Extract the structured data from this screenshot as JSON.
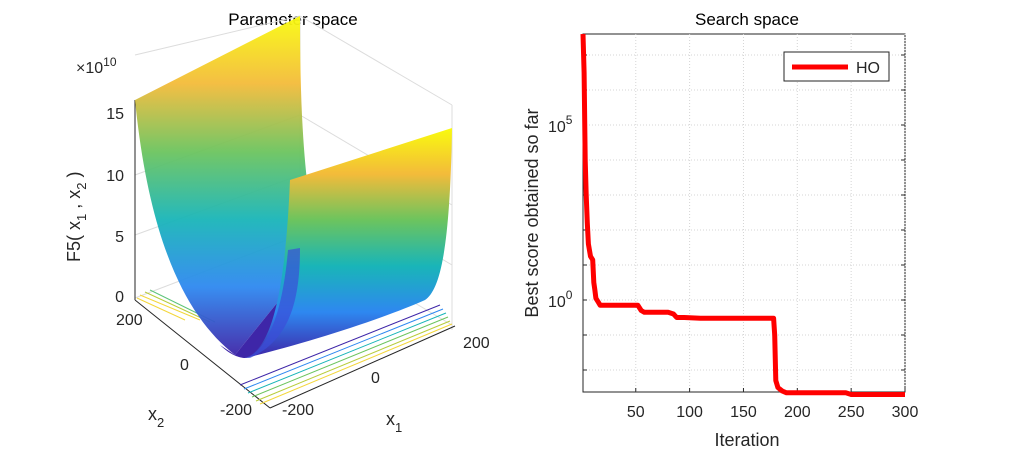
{
  "figure": {
    "left_title": "Parameter space",
    "right_title": "Search space"
  },
  "chart_data": [
    {
      "type": "surface",
      "title": "Parameter space",
      "zlabel": "F5( x",
      "zlabel_sub1": "1",
      "zlabel_mid": " , x",
      "zlabel_sub2": "2",
      "zlabel_end": " )",
      "zmultiplier": "×10",
      "zmultiplier_exp": "10",
      "xlabel": "x",
      "xlabel_sub": "1",
      "ylabel": "x",
      "ylabel_sub": "2",
      "z_ticks": [
        "0",
        "5",
        "10",
        "15"
      ],
      "x1_ticks": [
        "-200",
        "0",
        "200"
      ],
      "x2_ticks": [
        "200",
        "0",
        "-200"
      ],
      "xlim": [
        -200,
        200
      ],
      "ylim": [
        -200,
        200
      ],
      "zlim": [
        0,
        16
      ],
      "colormap": [
        "#3e26a8",
        "#2e88f0",
        "#19b5b8",
        "#6cc45e",
        "#f3bb3a",
        "#f9fb0e"
      ]
    },
    {
      "type": "line",
      "title": "Search space",
      "xlabel": "Iteration",
      "ylabel": "Best score obtained so far",
      "yscale": "log",
      "xlim": [
        1,
        300
      ],
      "x_ticks": [
        "50",
        "100",
        "150",
        "200",
        "250",
        "300"
      ],
      "y_ticks": [
        {
          "base": "10",
          "exp": "5"
        },
        {
          "base": "10",
          "exp": "0"
        }
      ],
      "grid": true,
      "legend": "top-right",
      "series": [
        {
          "name": "HO",
          "color": "#ff0000",
          "x": [
            1,
            2,
            3,
            4,
            5,
            6,
            8,
            10,
            11,
            12,
            13,
            15,
            17,
            20,
            30,
            45,
            52,
            55,
            58,
            70,
            80,
            85,
            88,
            95,
            110,
            130,
            150,
            170,
            178,
            179,
            180,
            182,
            184,
            186,
            190,
            200,
            220,
            245,
            250,
            270,
            290,
            300
          ],
          "log10_y": [
            9,
            6.5,
            4,
            3,
            2.2,
            1.6,
            1.25,
            1.15,
            0.5,
            0.3,
            0.05,
            -0.05,
            -0.15,
            -0.15,
            -0.15,
            -0.15,
            -0.15,
            -0.3,
            -0.35,
            -0.35,
            -0.35,
            -0.4,
            -0.5,
            -0.5,
            -0.52,
            -0.52,
            -0.52,
            -0.52,
            -0.52,
            -1.0,
            -2.3,
            -2.5,
            -2.55,
            -2.6,
            -2.65,
            -2.65,
            -2.65,
            -2.65,
            -2.7,
            -2.7,
            -2.7,
            -2.7
          ]
        }
      ]
    }
  ]
}
